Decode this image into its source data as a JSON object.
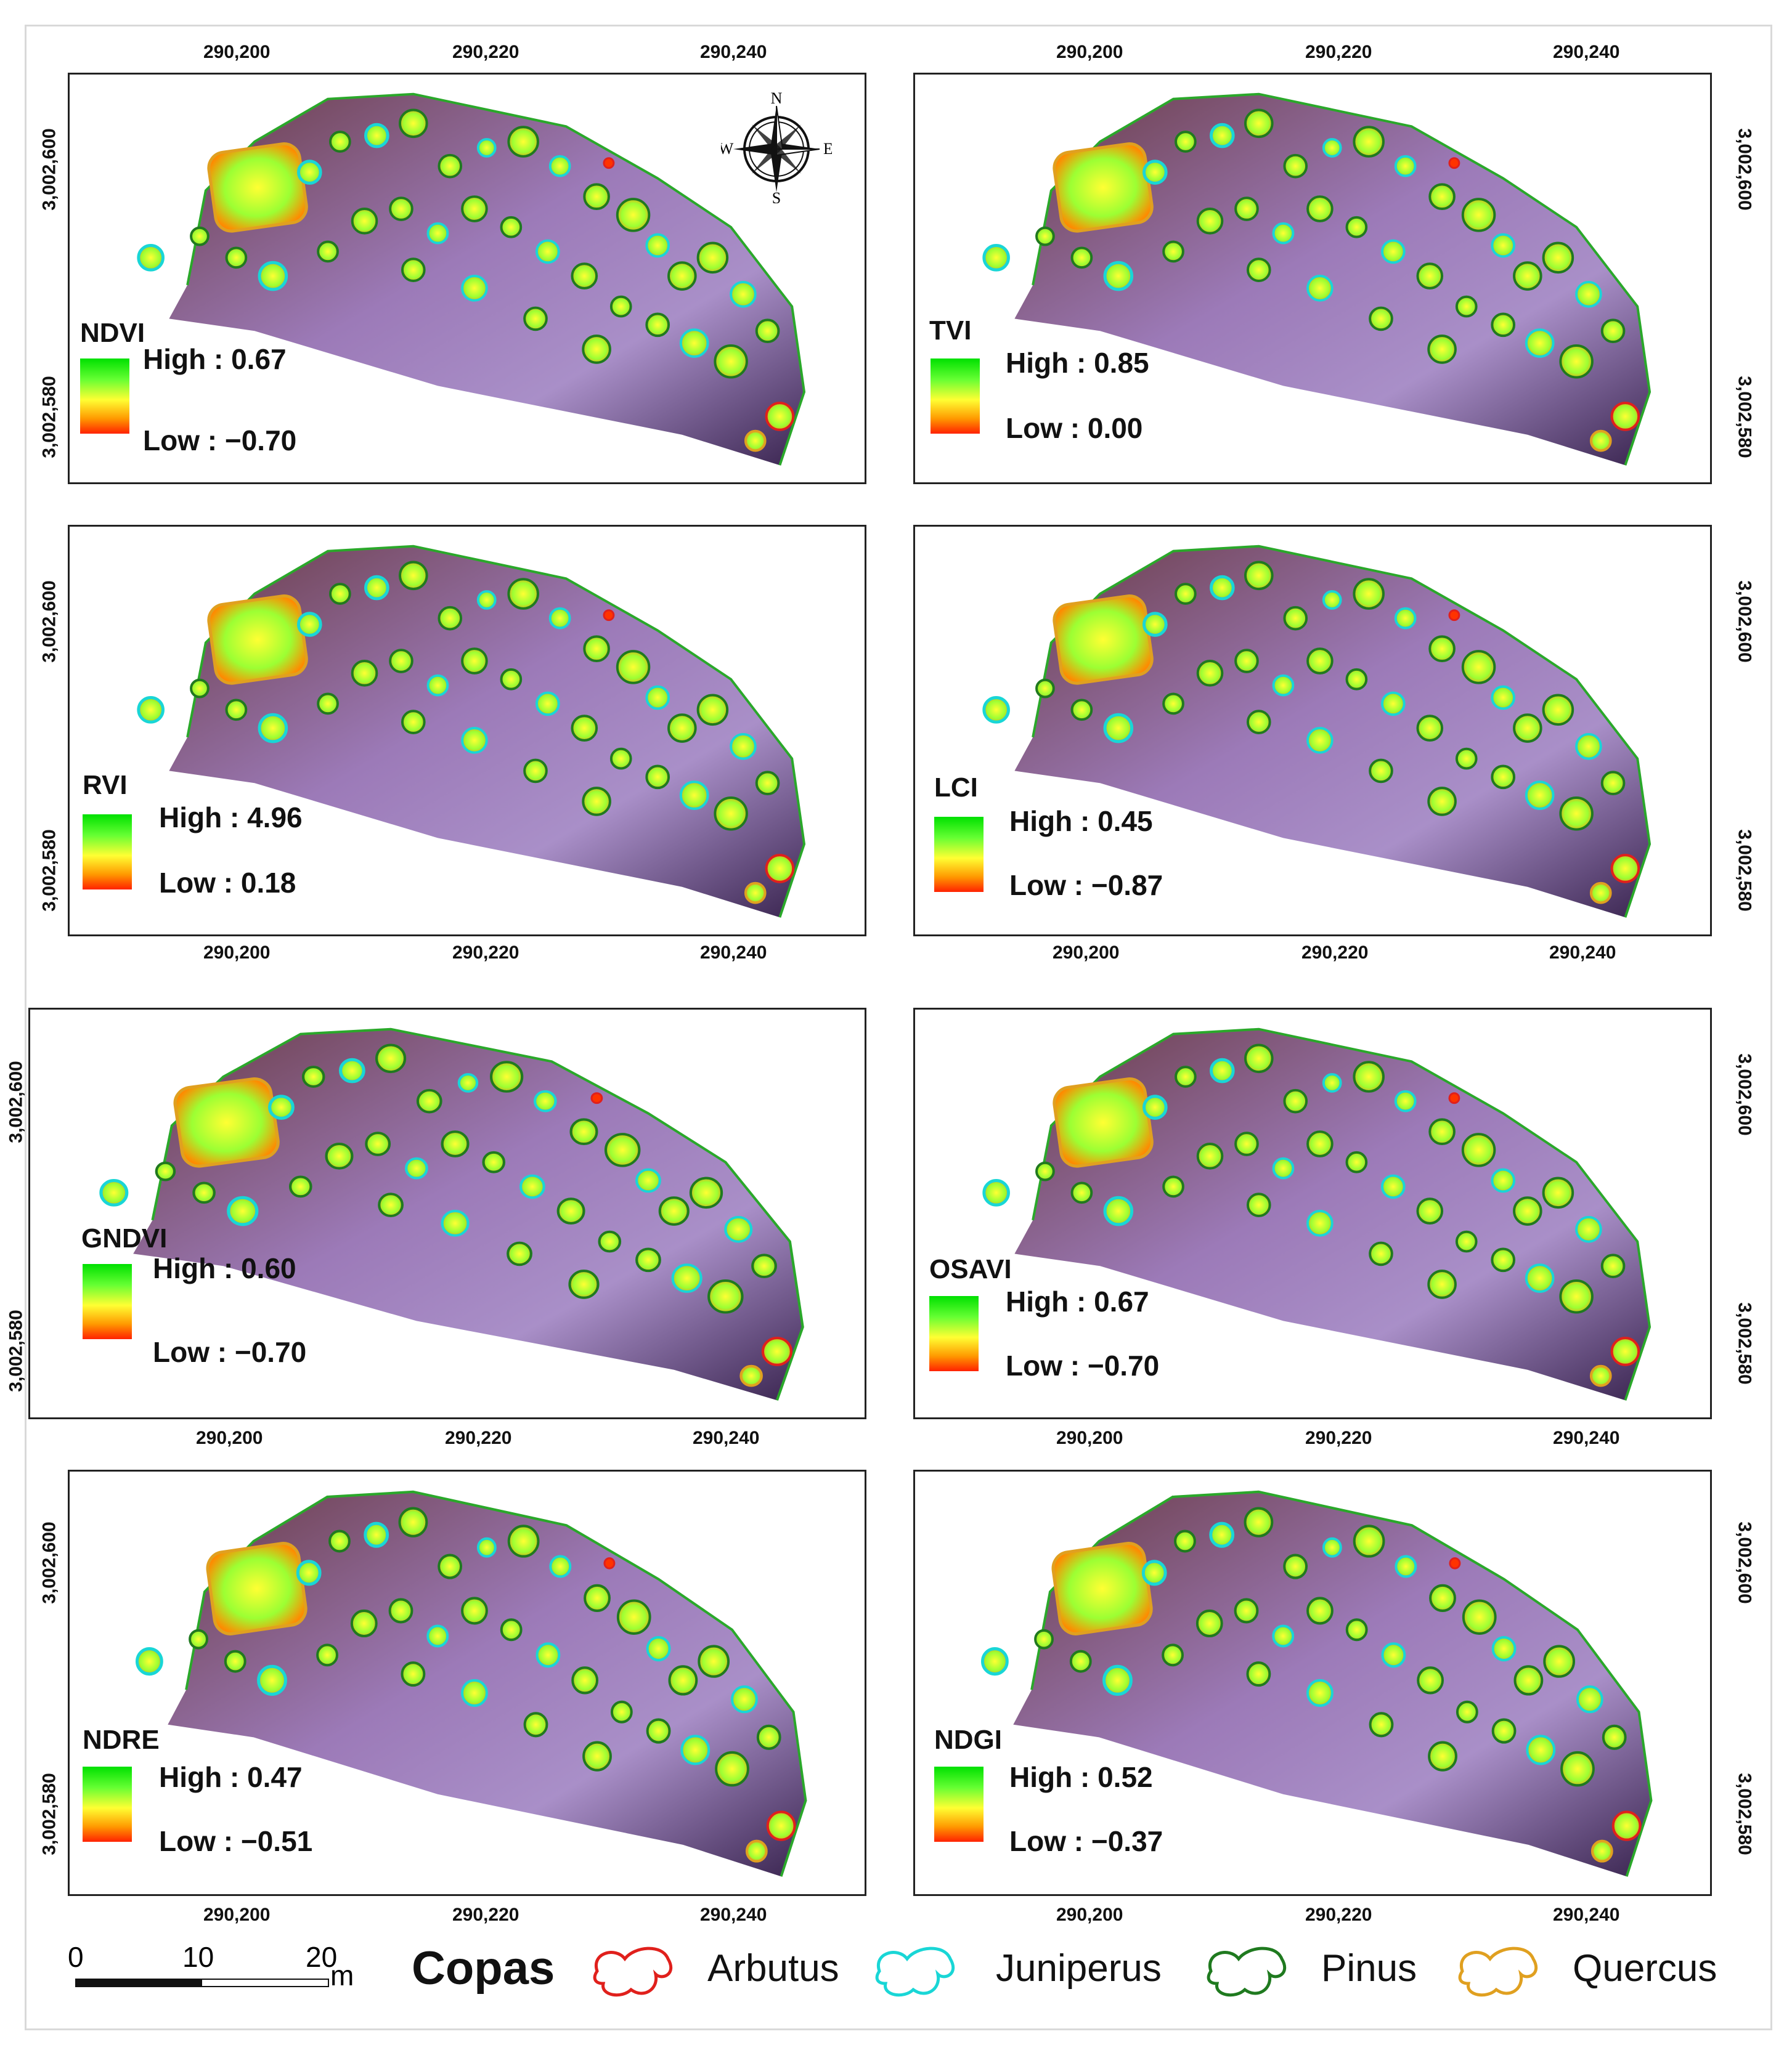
{
  "colors": {
    "arbutus": "#e0201c",
    "juniperus": "#19d6d6",
    "pinus": "#1f7a1f",
    "quercus": "#e0a020",
    "gradient_high": "#00e000",
    "gradient_mid": "#ffff33",
    "gradient_low": "#ff2200"
  },
  "axes": {
    "x_ticks": [
      "290,200",
      "290,220",
      "290,240"
    ],
    "y_ticks": [
      "3,002,600",
      "3,002,580"
    ]
  },
  "panels": [
    {
      "id": "ndvi",
      "index": "NDVI",
      "high": "High : 0.67",
      "low": "Low : −0.70",
      "has_compass": true
    },
    {
      "id": "tvi",
      "index": "TVI",
      "high": "High : 0.85",
      "low": "Low : 0.00",
      "has_compass": false
    },
    {
      "id": "rvi",
      "index": "RVI",
      "high": "High : 4.96",
      "low": "Low : 0.18",
      "has_compass": false
    },
    {
      "id": "lci",
      "index": "LCI",
      "high": "High : 0.45",
      "low": "Low : −0.87",
      "has_compass": false
    },
    {
      "id": "gndvi",
      "index": "GNDVI",
      "high": "High : 0.60",
      "low": "Low : −0.70",
      "has_compass": false
    },
    {
      "id": "osavi",
      "index": "OSAVI",
      "high": "High : 0.67",
      "low": "Low : −0.70",
      "has_compass": false
    },
    {
      "id": "ndre",
      "index": "NDRE",
      "high": "High : 0.47",
      "low": "Low : −0.51",
      "has_compass": false
    },
    {
      "id": "ndgi",
      "index": "NDGI",
      "high": "High : 0.52",
      "low": "Low : −0.37",
      "has_compass": false
    }
  ],
  "compass": {
    "n": "N",
    "s": "S",
    "e": "E",
    "w": "W"
  },
  "scale_bar": {
    "ticks": [
      "0",
      "10",
      "20"
    ],
    "unit": "m"
  },
  "legend": {
    "title": "Copas",
    "items": [
      {
        "label": "Arbutus",
        "color_key": "arbutus"
      },
      {
        "label": "Juniperus",
        "color_key": "juniperus"
      },
      {
        "label": "Pinus",
        "color_key": "pinus"
      },
      {
        "label": "Quercus",
        "color_key": "quercus"
      }
    ]
  }
}
